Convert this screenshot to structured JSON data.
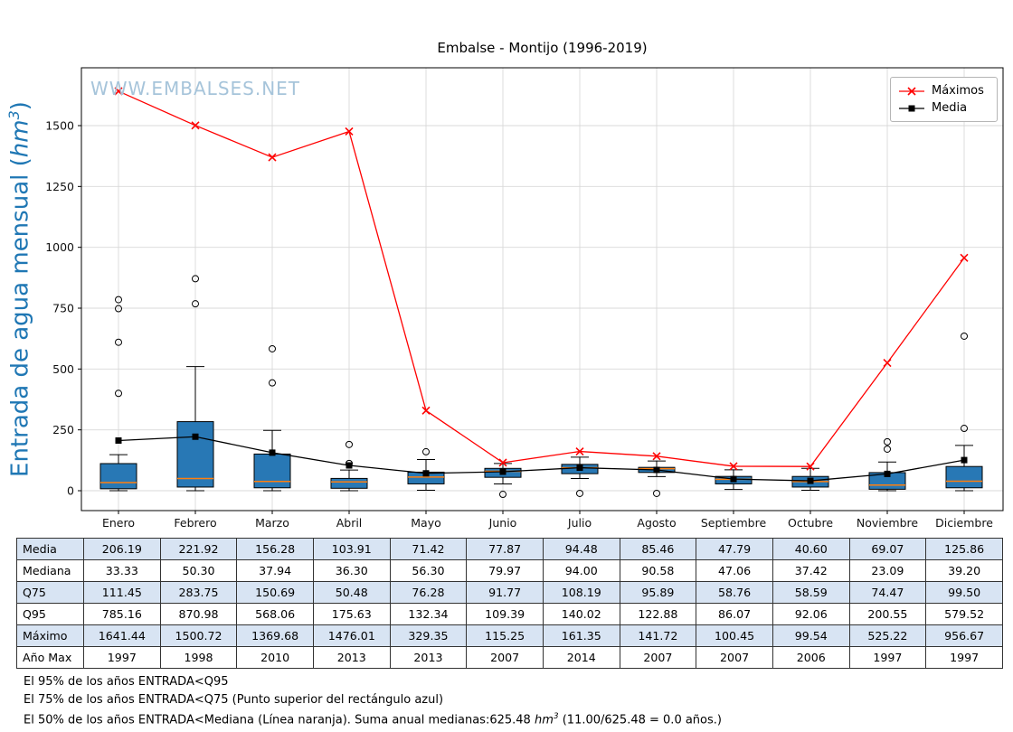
{
  "page_title": "Embalse - Montijo (1996-2019)",
  "watermark": "WWW.EMBALSES.NET",
  "y_axis": {
    "label_pre": "Entrada de agua mensual (",
    "label_var": "hm",
    "label_sup": "3",
    "label_post": ")"
  },
  "legend": {
    "items": [
      {
        "label": "Máximos"
      },
      {
        "label": "Media"
      }
    ]
  },
  "chart_data": {
    "type": "boxplot_with_lines",
    "title": "Embalse - Montijo (1996-2019)",
    "ylabel": "Entrada de agua mensual (hm³)",
    "ylim": [
      -81,
      1738
    ],
    "yticks": [
      0,
      250,
      500,
      750,
      1000,
      1250,
      1500
    ],
    "grid": true,
    "legend_position": "upper right",
    "categories": [
      "Enero",
      "Febrero",
      "Marzo",
      "Abril",
      "Mayo",
      "Junio",
      "Julio",
      "Agosto",
      "Septiembre",
      "Octubre",
      "Noviembre",
      "Diciembre"
    ],
    "series": [
      {
        "name": "Máximos",
        "marker": "x",
        "color": "#ff0000",
        "values": [
          1641.44,
          1500.72,
          1369.68,
          1476.01,
          329.35,
          115.25,
          161.35,
          141.72,
          100.45,
          99.54,
          525.22,
          956.67
        ]
      },
      {
        "name": "Media",
        "marker": "square",
        "color": "#000000",
        "values": [
          206.19,
          221.92,
          156.28,
          103.91,
          71.42,
          77.87,
          94.48,
          85.46,
          47.79,
          40.6,
          69.07,
          125.86
        ]
      }
    ],
    "boxes": [
      {
        "q25": 8,
        "median": 33.33,
        "q75": 111.45,
        "whisker_low": 0,
        "whisker_high": 148,
        "outliers": [
          400,
          610,
          748,
          785
        ]
      },
      {
        "q25": 15,
        "median": 50.3,
        "q75": 283.75,
        "whisker_low": 0,
        "whisker_high": 510,
        "outliers": [
          768,
          871
        ]
      },
      {
        "q25": 12,
        "median": 37.94,
        "q75": 150.69,
        "whisker_low": 0,
        "whisker_high": 248,
        "outliers": [
          443,
          583
        ]
      },
      {
        "q25": 10,
        "median": 36.3,
        "q75": 50.48,
        "whisker_low": 0,
        "whisker_high": 85,
        "outliers": [
          112,
          190
        ]
      },
      {
        "q25": 28,
        "median": 56.3,
        "q75": 76.28,
        "whisker_low": 2,
        "whisker_high": 128,
        "outliers": [
          160
        ]
      },
      {
        "q25": 55,
        "median": 79.97,
        "q75": 91.77,
        "whisker_low": 28,
        "whisker_high": 112,
        "outliers": [
          -15
        ]
      },
      {
        "q25": 70,
        "median": 94.0,
        "q75": 108.19,
        "whisker_low": 50,
        "whisker_high": 138,
        "outliers": [
          -11
        ]
      },
      {
        "q25": 75,
        "median": 90.58,
        "q75": 95.89,
        "whisker_low": 58,
        "whisker_high": 122,
        "outliers": [
          -11
        ]
      },
      {
        "q25": 28,
        "median": 47.06,
        "q75": 58.76,
        "whisker_low": 5,
        "whisker_high": 86,
        "outliers": []
      },
      {
        "q25": 15,
        "median": 37.42,
        "q75": 58.59,
        "whisker_low": 2,
        "whisker_high": 92,
        "outliers": []
      },
      {
        "q25": 6,
        "median": 23.09,
        "q75": 74.47,
        "whisker_low": 0,
        "whisker_high": 118,
        "outliers": [
          171,
          201
        ]
      },
      {
        "q25": 12,
        "median": 39.2,
        "q75": 99.5,
        "whisker_low": 0,
        "whisker_high": 186,
        "outliers": [
          256,
          635
        ]
      }
    ],
    "style": {
      "box_fill": "#2878b5",
      "median_color": "#ff7f0e",
      "grid_color": "#d9d9d9",
      "axis_color": "#000000",
      "ylabel_color": "#1f77b4",
      "watermark_color": "#a6c4da",
      "table_alt_row": "#d8e4f3"
    }
  },
  "table": {
    "row_labels": [
      "Media",
      "Mediana",
      "Q75",
      "Q95",
      "Máximo",
      "Año Max"
    ],
    "columns": [
      "Enero",
      "Febrero",
      "Marzo",
      "Abril",
      "Mayo",
      "Junio",
      "Julio",
      "Agosto",
      "Septiembre",
      "Octubre",
      "Noviembre",
      "Diciembre"
    ],
    "rows": [
      [
        "206.19",
        "221.92",
        "156.28",
        "103.91",
        "71.42",
        "77.87",
        "94.48",
        "85.46",
        "47.79",
        "40.60",
        "69.07",
        "125.86"
      ],
      [
        "33.33",
        "50.30",
        "37.94",
        "36.30",
        "56.30",
        "79.97",
        "94.00",
        "90.58",
        "47.06",
        "37.42",
        "23.09",
        "39.20"
      ],
      [
        "111.45",
        "283.75",
        "150.69",
        "50.48",
        "76.28",
        "91.77",
        "108.19",
        "95.89",
        "58.76",
        "58.59",
        "74.47",
        "99.50"
      ],
      [
        "785.16",
        "870.98",
        "568.06",
        "175.63",
        "132.34",
        "109.39",
        "140.02",
        "122.88",
        "86.07",
        "92.06",
        "200.55",
        "579.52"
      ],
      [
        "1641.44",
        "1500.72",
        "1369.68",
        "1476.01",
        "329.35",
        "115.25",
        "161.35",
        "141.72",
        "100.45",
        "99.54",
        "525.22",
        "956.67"
      ],
      [
        "1997",
        "1998",
        "2010",
        "2013",
        "2013",
        "2007",
        "2014",
        "2007",
        "2007",
        "2006",
        "1997",
        "1997"
      ]
    ]
  },
  "footnotes": {
    "line1": "El 95% de los años ENTRADA<Q95",
    "line2": "El 75% de los años ENTRADA<Q75 (Punto superior del rectángulo azul)",
    "line3_pre": "El 50% de los años ENTRADA<Mediana (Línea naranja). Suma anual medianas:625.48 ",
    "line3_var": "hm",
    "line3_sup": "3",
    "line3_post": " (11.00/625.48 = 0.0 años.)"
  }
}
